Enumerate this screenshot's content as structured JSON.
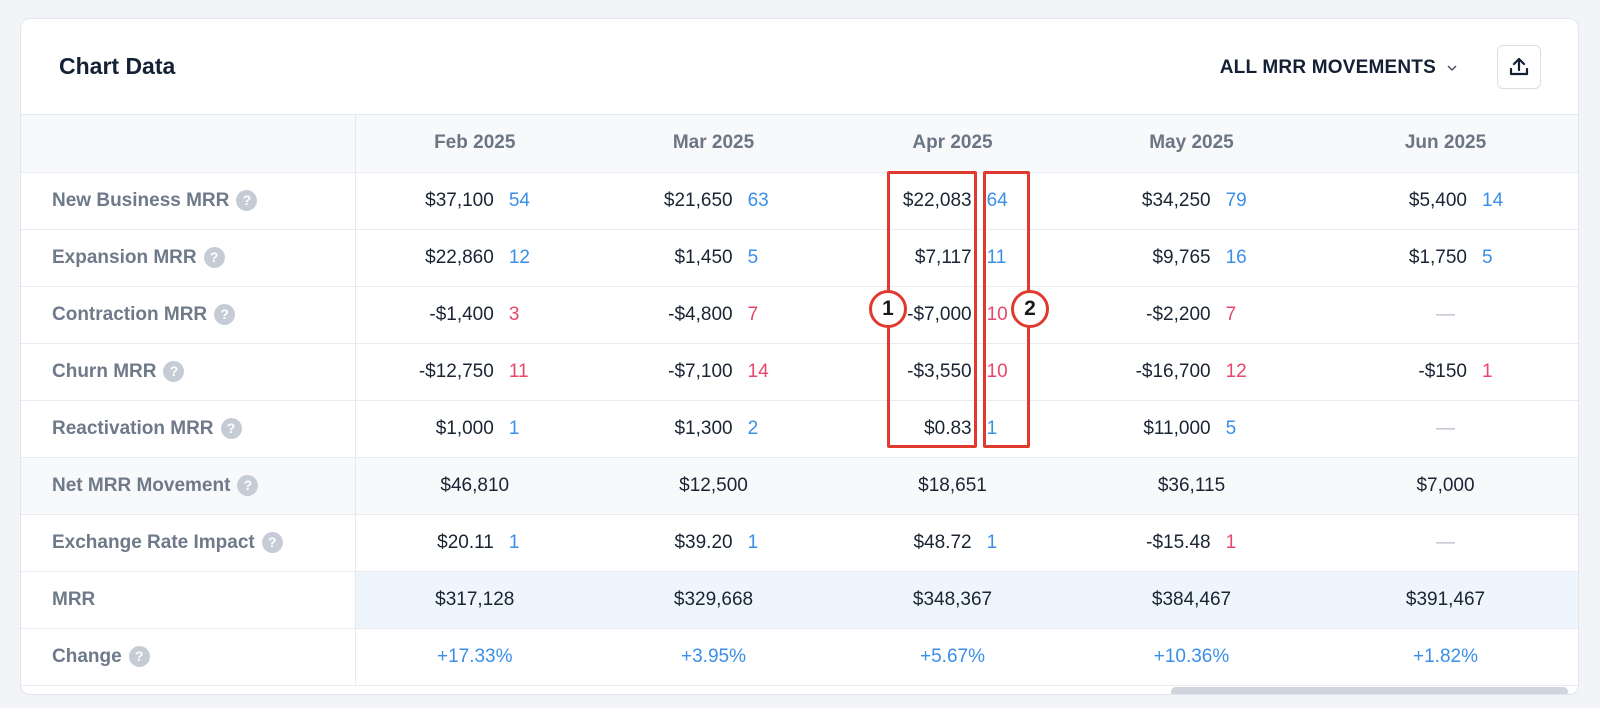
{
  "header": {
    "title": "Chart Data",
    "movement_filter": "ALL MRR MOVEMENTS"
  },
  "months": [
    "Feb 2025",
    "Mar 2025",
    "Apr 2025",
    "May 2025",
    "Jun 2025"
  ],
  "rows": {
    "new_business": {
      "label": "New Business MRR",
      "cells": [
        {
          "amount": "$37,100",
          "count": "54"
        },
        {
          "amount": "$21,650",
          "count": "63"
        },
        {
          "amount": "$22,083",
          "count": "64"
        },
        {
          "amount": "$34,250",
          "count": "79"
        },
        {
          "amount": "$5,400",
          "count": "14"
        }
      ]
    },
    "expansion": {
      "label": "Expansion MRR",
      "cells": [
        {
          "amount": "$22,860",
          "count": "12"
        },
        {
          "amount": "$1,450",
          "count": "5"
        },
        {
          "amount": "$7,117",
          "count": "11"
        },
        {
          "amount": "$9,765",
          "count": "16"
        },
        {
          "amount": "$1,750",
          "count": "5"
        }
      ]
    },
    "contraction": {
      "label": "Contraction MRR",
      "cells": [
        {
          "amount": "-$1,400",
          "count": "3"
        },
        {
          "amount": "-$4,800",
          "count": "7"
        },
        {
          "amount": "-$7,000",
          "count": "10"
        },
        {
          "amount": "-$2,200",
          "count": "7"
        },
        {
          "empty": "—"
        }
      ]
    },
    "churn": {
      "label": "Churn MRR",
      "cells": [
        {
          "amount": "-$12,750",
          "count": "11"
        },
        {
          "amount": "-$7,100",
          "count": "14"
        },
        {
          "amount": "-$3,550",
          "count": "10"
        },
        {
          "amount": "-$16,700",
          "count": "12"
        },
        {
          "amount": "-$150",
          "count": "1"
        }
      ]
    },
    "reactivation": {
      "label": "Reactivation MRR",
      "cells": [
        {
          "amount": "$1,000",
          "count": "1"
        },
        {
          "amount": "$1,300",
          "count": "2"
        },
        {
          "amount": "$0.83",
          "count": "1"
        },
        {
          "amount": "$11,000",
          "count": "5"
        },
        {
          "empty": "—"
        }
      ]
    },
    "net_movement": {
      "label": "Net MRR Movement",
      "values": [
        "$46,810",
        "$12,500",
        "$18,651",
        "$36,115",
        "$7,000"
      ]
    },
    "exchange_rate": {
      "label": "Exchange Rate Impact",
      "cells": [
        {
          "amount": "$20.11",
          "count": "1"
        },
        {
          "amount": "$39.20",
          "count": "1"
        },
        {
          "amount": "$48.72",
          "count": "1"
        },
        {
          "amount": "-$15.48",
          "count": "1"
        },
        {
          "empty": "—"
        }
      ]
    },
    "mrr": {
      "label": "MRR",
      "values": [
        "$317,128",
        "$329,668",
        "$348,367",
        "$384,467",
        "$391,467"
      ]
    },
    "change": {
      "label": "Change",
      "values": [
        "+17.33%",
        "+3.95%",
        "+5.67%",
        "+10.36%",
        "+1.82%"
      ]
    }
  },
  "annotations": [
    "1",
    "2"
  ],
  "colors": {
    "positive": "#3a8fe8",
    "negative": "#e8466b",
    "annotation": "#e0392d"
  },
  "icons": [
    "help-icon",
    "chevron-down-icon",
    "export-icon"
  ]
}
